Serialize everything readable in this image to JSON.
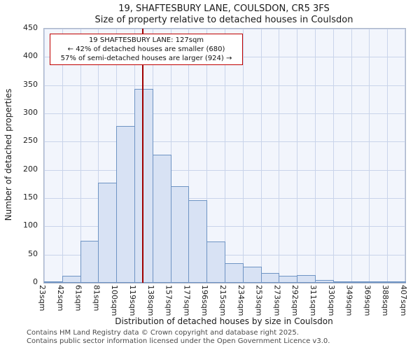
{
  "title": {
    "line1": "19, SHAFTESBURY LANE, COULSDON, CR5 3FS",
    "line2": "Size of property relative to detached houses in Coulsdon"
  },
  "chart_data": {
    "type": "bar",
    "categories": [
      "23sqm",
      "42sqm",
      "61sqm",
      "81sqm",
      "100sqm",
      "119sqm",
      "138sqm",
      "157sqm",
      "177sqm",
      "196sqm",
      "215sqm",
      "234sqm",
      "253sqm",
      "273sqm",
      "292sqm",
      "311sqm",
      "330sqm",
      "349sqm",
      "369sqm",
      "388sqm",
      "407sqm"
    ],
    "values": [
      2,
      13,
      75,
      177,
      278,
      343,
      227,
      171,
      146,
      73,
      35,
      28,
      17,
      12,
      14,
      5,
      2,
      1,
      1,
      1
    ],
    "title": "19, SHAFTESBURY LANE, COULSDON, CR5 3FS",
    "subtitle": "Size of property relative to detached houses in Coulsdon",
    "xlabel": "Distribution of detached houses by size in Coulsdon",
    "ylabel": "Number of detached properties",
    "ylim": [
      0,
      450
    ],
    "ytick_step": 50,
    "grid": true,
    "legend": "none",
    "marker": {
      "label": "19 SHAFTESBURY LANE: 127sqm",
      "value_sqm": 127,
      "bin_start": 119,
      "bin_end": 138,
      "bin_index": 5,
      "color": "#a00000"
    }
  },
  "annotation": {
    "line1": "19 SHAFTESBURY LANE: 127sqm",
    "line2": "← 42% of detached houses are smaller (680)",
    "line3": "57% of semi-detached houses are larger (924) →"
  },
  "colors": {
    "bar_fill": "#d8e2f4",
    "bar_border": "#6f94c4",
    "grid": "#c9d4ea",
    "plot_bg": "#f2f5fc",
    "marker_line": "#a00000",
    "annotation_border": "#c00000"
  },
  "footer": {
    "line1": "Contains HM Land Registry data © Crown copyright and database right 2025.",
    "line2": "Contains public sector information licensed under the Open Government Licence v3.0."
  }
}
